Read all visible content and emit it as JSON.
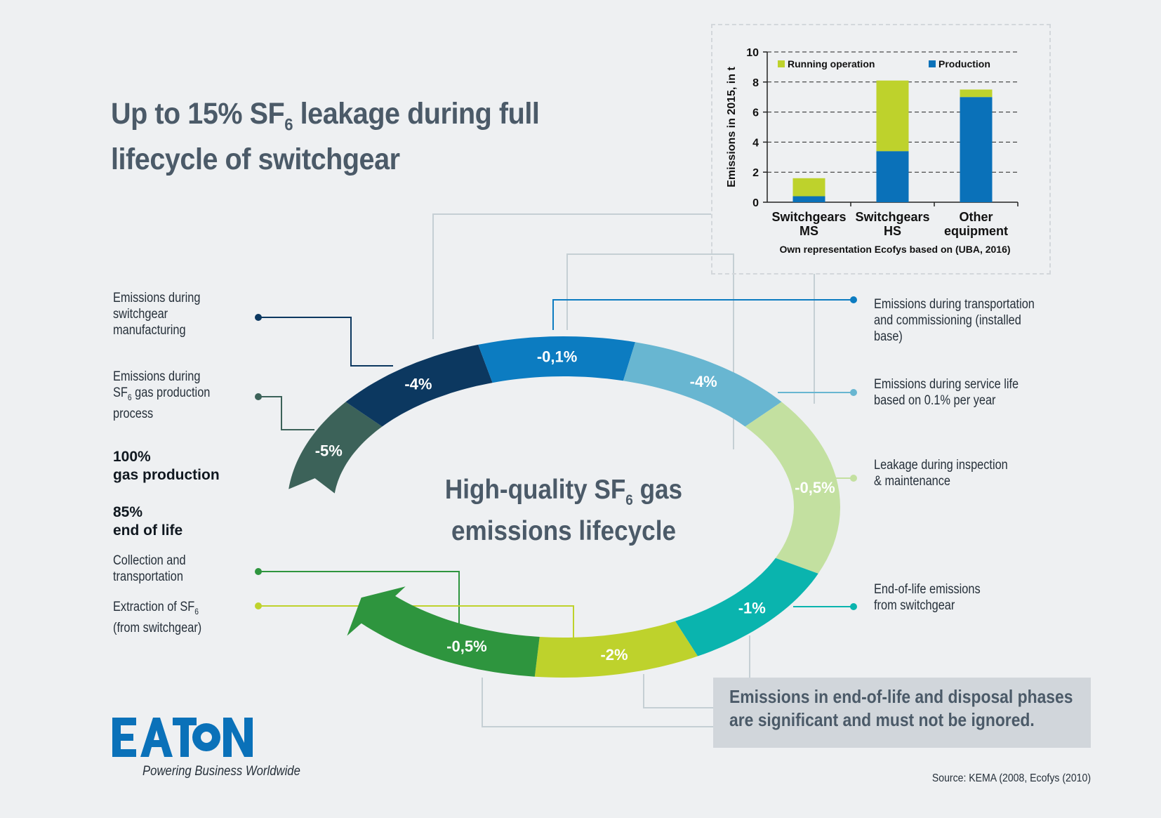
{
  "title": {
    "line1_a": "Up to 15% SF",
    "line1_sub": "6",
    "line1_b": " leakage during full",
    "line2": "lifecycle of switchgear"
  },
  "center_title": {
    "line1_a": "High-quality SF",
    "line1_sub": "6",
    "line1_b": " gas",
    "line2": "emissions lifecycle"
  },
  "left_labels": {
    "manufacturing": "Emissions during\nswitchgear\nmanufacturing",
    "gas_production_a": "Emissions during\nSF",
    "gas_production_sub": "6",
    "gas_production_b": " gas production\nprocess",
    "gas_production_pct": "100%",
    "gas_production_label": "gas production",
    "end_of_life_pct": "85%",
    "end_of_life_label": "end of life",
    "collection": "Collection and\ntransportation",
    "extraction_a": "Extraction of SF",
    "extraction_sub": "6",
    "extraction_b": "\n(from switchgear)"
  },
  "right_labels": {
    "transport": "Emissions during transportation\nand commissioning (installed\nbase)",
    "service": "Emissions during service life\nbased on 0.1% per year",
    "inspection": "Leakage during inspection\n& maintenance",
    "eol": "End-of-life emissions\nfrom switchgear"
  },
  "callout": "Emissions in end-of-life and disposal phases\nare significant and must not be ignored.",
  "source": "Source: KEMA (2008, Ecofys (2010)",
  "logo": {
    "text": "EATON",
    "tagline": "Powering Business Worldwide",
    "color": "#0a71b9"
  },
  "colors": {
    "gas_production": "#3c6259",
    "manufacturing": "#0c3860",
    "transport": "#0c7cc1",
    "service": "#68b6d1",
    "inspection": "#c3e0a0",
    "eol": "#0ab4ae",
    "extraction": "#bed22c",
    "collection": "#2e953e"
  },
  "cycle_segments": [
    {
      "key": "gas_production",
      "label": "-5%"
    },
    {
      "key": "manufacturing",
      "label": "-4%"
    },
    {
      "key": "transport",
      "label": "-0,1%"
    },
    {
      "key": "service",
      "label": "-4%"
    },
    {
      "key": "inspection",
      "label": "-0,5%"
    },
    {
      "key": "eol",
      "label": "-1%"
    },
    {
      "key": "extraction",
      "label": "-2%"
    },
    {
      "key": "collection",
      "label": "-0,5%"
    }
  ],
  "chart_data": [
    {
      "type": "bar",
      "stacked": true,
      "categories": [
        "Switchgears MS",
        "Switchgears HS",
        "Other equipment"
      ],
      "category_lines": [
        [
          "Switchgears",
          "MS"
        ],
        [
          "Switchgears",
          "HS"
        ],
        [
          "Other",
          "equipment"
        ]
      ],
      "series": [
        {
          "name": "Production",
          "color": "#0a71b9",
          "values": [
            0.4,
            3.4,
            7.0
          ]
        },
        {
          "name": "Running operation",
          "color": "#bed22c",
          "values": [
            1.2,
            4.7,
            0.5
          ]
        }
      ],
      "ylabel": "Emissions in 2015, in t",
      "ylim": [
        0,
        10
      ],
      "yticks": [
        0,
        2,
        4,
        6,
        8,
        10
      ],
      "grid": "dashed horizontal",
      "legend": "top",
      "caption": "Own representation Ecofys based on (UBA, 2016)"
    },
    {
      "type": "pie",
      "description_free": true,
      "categories": [
        "gas production",
        "switchgear manufacturing",
        "transportation and commissioning",
        "service life",
        "inspection & maintenance",
        "end-of-life",
        "extraction of SF6",
        "collection and transportation"
      ],
      "values": [
        -5,
        -4,
        -0.1,
        -4,
        -0.5,
        -1,
        -2,
        -0.5
      ]
    }
  ]
}
